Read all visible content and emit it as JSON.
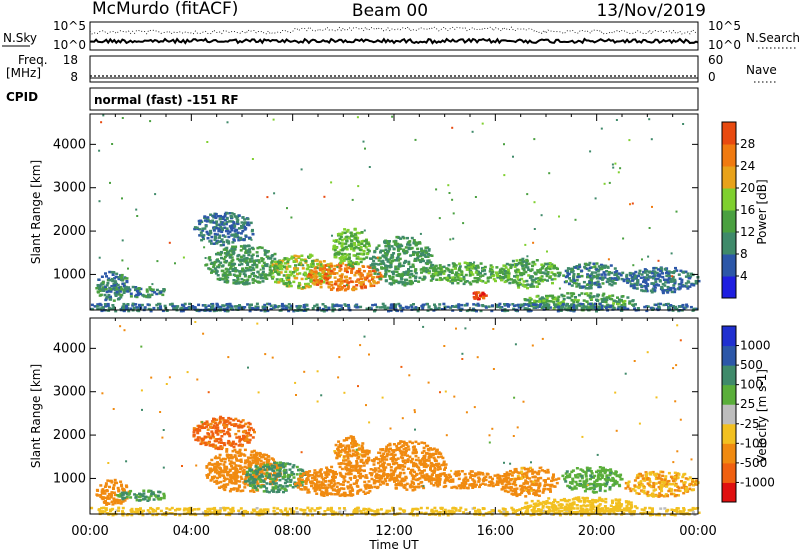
{
  "header": {
    "left": "McMurdo (fitACF)",
    "center": "Beam 00",
    "right": "13/Nov/2019"
  },
  "noise_panel": {
    "left_label": "N.Sky",
    "right_label": "N.Search",
    "left_ticks": [
      "10^5",
      "10^0"
    ],
    "right_ticks": [
      "10^5",
      "10^0"
    ]
  },
  "freq_panel": {
    "left_label_top": "Freq.",
    "left_label_bottom": "[MHz]",
    "left_ticks": [
      "18",
      "8"
    ],
    "right_label": "Nave",
    "right_ticks": [
      "60",
      "0"
    ]
  },
  "cpid_panel": {
    "label": "CPID",
    "text": "normal (fast) -151 RF"
  },
  "x_axis": {
    "label": "Time UT",
    "ticks": [
      "00:00",
      "04:00",
      "08:00",
      "12:00",
      "16:00",
      "20:00",
      "00:00"
    ]
  },
  "colors": {
    "power_scale": [
      "#1f1fe0",
      "#2c57a8",
      "#3f8a6a",
      "#4aa040",
      "#7fcf2f",
      "#e8a21a",
      "#f07a10",
      "#e84a10",
      "#e01010"
    ],
    "velocity_scale": [
      "#2030d0",
      "#2c57a8",
      "#3f8a6a",
      "#5aae3a",
      "#bdbdbd",
      "#f2c020",
      "#f08a10",
      "#f06010",
      "#e01010"
    ]
  },
  "chart_data": [
    {
      "type": "heatmap",
      "title": "Power",
      "xlabel": "Time UT",
      "ylabel": "Slant Range [km]",
      "y_ticks": [
        "1000",
        "2000",
        "3000",
        "4000"
      ],
      "ylim": [
        180,
        4700
      ],
      "x_range_hours": [
        0,
        24
      ],
      "colorbar": {
        "label": "Power [dB]",
        "ticks": [
          "4",
          "8",
          "12",
          "16",
          "20",
          "24",
          "28"
        ],
        "range": [
          0,
          32
        ]
      },
      "regions": [
        {
          "t": [
            0.2,
            1.5
          ],
          "r": [
            400,
            1100
          ],
          "v": 8
        },
        {
          "t": [
            1.0,
            3.0
          ],
          "r": [
            500,
            750
          ],
          "v": 8
        },
        {
          "t": [
            4.0,
            6.5
          ],
          "r": [
            1700,
            2450
          ],
          "v": 6
        },
        {
          "t": [
            4.5,
            7.5
          ],
          "r": [
            800,
            1700
          ],
          "v": 10
        },
        {
          "t": [
            7.0,
            9.5
          ],
          "r": [
            700,
            1500
          ],
          "v": 16
        },
        {
          "t": [
            8.5,
            11.5
          ],
          "r": [
            650,
            1300
          ],
          "v": 24
        },
        {
          "t": [
            9.5,
            11.0
          ],
          "r": [
            1200,
            2100
          ],
          "v": 14
        },
        {
          "t": [
            11.0,
            13.5
          ],
          "r": [
            750,
            1900
          ],
          "v": 10
        },
        {
          "t": [
            13.0,
            16.5
          ],
          "r": [
            800,
            1300
          ],
          "v": 12
        },
        {
          "t": [
            15.0,
            15.6
          ],
          "r": [
            450,
            620
          ],
          "v": 28
        },
        {
          "t": [
            16.0,
            18.5
          ],
          "r": [
            700,
            1400
          ],
          "v": 12
        },
        {
          "t": [
            17.0,
            21.5
          ],
          "r": [
            200,
            600
          ],
          "v": 12
        },
        {
          "t": [
            18.5,
            21.0
          ],
          "r": [
            700,
            1300
          ],
          "v": 8
        },
        {
          "t": [
            21.0,
            24.0
          ],
          "r": [
            600,
            1200
          ],
          "v": 6
        },
        {
          "t": [
            0.0,
            24.0
          ],
          "r": [
            180,
            350
          ],
          "v": 6
        }
      ]
    },
    {
      "type": "heatmap",
      "title": "Velocity",
      "xlabel": "Time UT",
      "ylabel": "Slant Range [km]",
      "y_ticks": [
        "1000",
        "2000",
        "3000",
        "4000"
      ],
      "ylim": [
        180,
        4700
      ],
      "x_range_hours": [
        0,
        24
      ],
      "colorbar": {
        "label": "Velocity [m s-1]",
        "ticks": [
          "1000",
          "500",
          "100",
          "25",
          "-25",
          "-100",
          "-500",
          "-1000"
        ]
      },
      "regions": [
        {
          "t": [
            0.2,
            1.5
          ],
          "r": [
            400,
            1000
          ],
          "v": -300
        },
        {
          "t": [
            1.0,
            3.0
          ],
          "r": [
            500,
            750
          ],
          "v": 100
        },
        {
          "t": [
            4.0,
            6.5
          ],
          "r": [
            1700,
            2450
          ],
          "v": -600
        },
        {
          "t": [
            4.5,
            7.5
          ],
          "r": [
            700,
            1700
          ],
          "v": -200
        },
        {
          "t": [
            6.0,
            8.5
          ],
          "r": [
            700,
            1400
          ],
          "v": 120
        },
        {
          "t": [
            8.0,
            11.5
          ],
          "r": [
            600,
            1300
          ],
          "v": -300
        },
        {
          "t": [
            9.5,
            11.0
          ],
          "r": [
            1200,
            2000
          ],
          "v": -150
        },
        {
          "t": [
            11.0,
            14.0
          ],
          "r": [
            750,
            1900
          ],
          "v": -200
        },
        {
          "t": [
            13.0,
            16.5
          ],
          "r": [
            800,
            1200
          ],
          "v": -250
        },
        {
          "t": [
            16.0,
            18.5
          ],
          "r": [
            600,
            1300
          ],
          "v": -150
        },
        {
          "t": [
            17.0,
            21.5
          ],
          "r": [
            200,
            600
          ],
          "v": -60
        },
        {
          "t": [
            18.5,
            21.0
          ],
          "r": [
            700,
            1300
          ],
          "v": 80
        },
        {
          "t": [
            21.0,
            24.0
          ],
          "r": [
            600,
            1200
          ],
          "v": -100
        },
        {
          "t": [
            0.0,
            24.0
          ],
          "r": [
            180,
            350
          ],
          "v": -40
        }
      ]
    }
  ]
}
